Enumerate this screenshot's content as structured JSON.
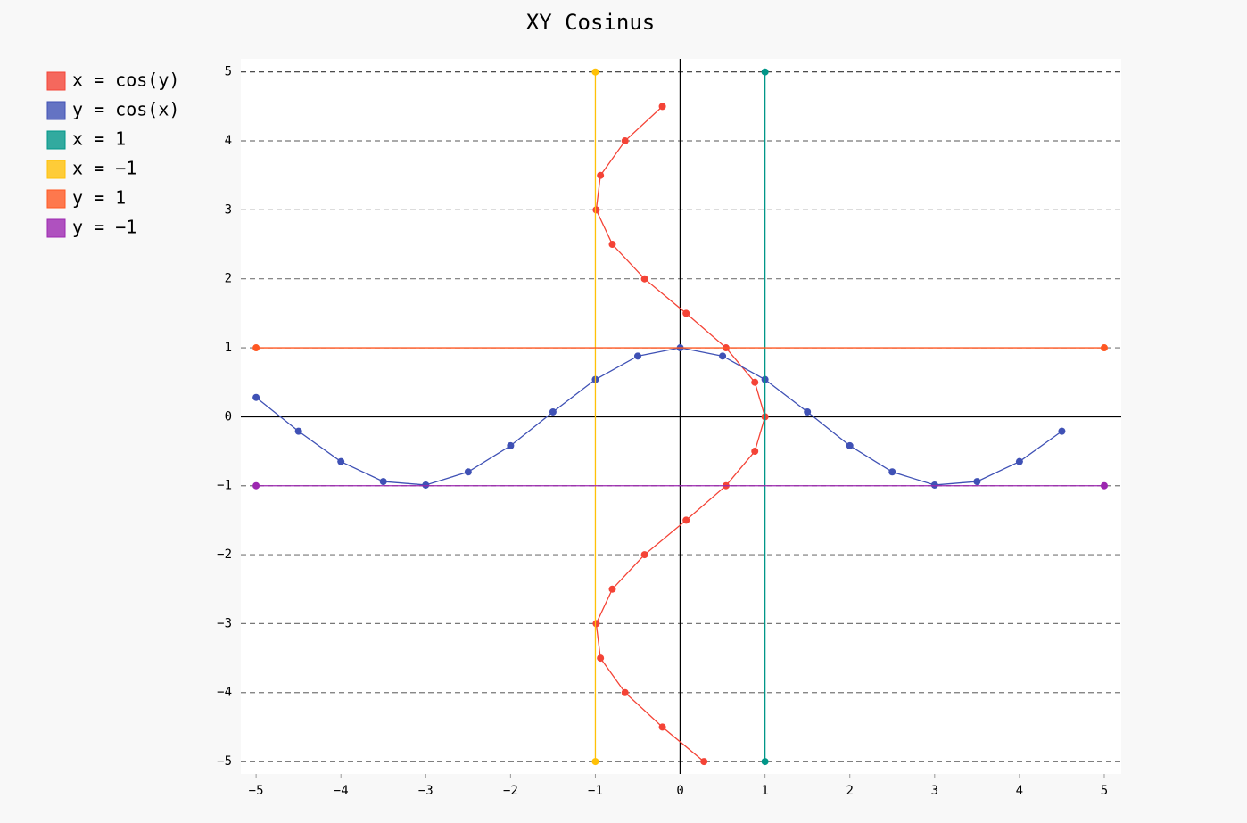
{
  "chart_data": {
    "type": "xy",
    "title": "XY Cosinus",
    "legend": "top-left",
    "grid": true,
    "xlim": [
      -5.18,
      5.2
    ],
    "ylim": [
      -5.18,
      5.19
    ],
    "xticks": [
      {
        "value": -5,
        "label": "−5"
      },
      {
        "value": -4,
        "label": "−4"
      },
      {
        "value": -3,
        "label": "−3"
      },
      {
        "value": -2,
        "label": "−2"
      },
      {
        "value": -1,
        "label": "−1"
      },
      0,
      1,
      2,
      3,
      4,
      5
    ],
    "yticks": [
      {
        "value": -5,
        "label": "−5"
      },
      {
        "value": -4,
        "label": "−4"
      },
      {
        "value": -3,
        "label": "−3"
      },
      {
        "value": -2,
        "label": "−2"
      },
      {
        "value": -1,
        "label": "−1"
      },
      0,
      1,
      2,
      3,
      4,
      5
    ],
    "series": [
      {
        "name": "x = cos(y)",
        "color": "#F44336",
        "x": [
          0.28,
          -0.21,
          -0.65,
          -0.94,
          -0.99,
          -0.8,
          -0.42,
          0.07,
          0.54,
          0.88,
          1,
          0.88,
          0.54,
          0.07,
          -0.42,
          -0.8,
          -0.99,
          -0.94,
          -0.65,
          -0.21
        ],
        "values": [
          -5,
          -4.5,
          -4,
          -3.5,
          -3,
          -2.5,
          -2,
          -1.5,
          -1,
          -0.5,
          0,
          0.5,
          1,
          1.5,
          2,
          2.5,
          3,
          3.5,
          4,
          4.5
        ]
      },
      {
        "name": "y = cos(x)",
        "color": "#3F51B5",
        "x": [
          -5,
          -4.5,
          -4,
          -3.5,
          -3,
          -2.5,
          -2,
          -1.5,
          -1,
          -0.5,
          0,
          0.5,
          1,
          1.5,
          2,
          2.5,
          3,
          3.5,
          4,
          4.5
        ],
        "values": [
          0.28,
          -0.21,
          -0.65,
          -0.94,
          -0.99,
          -0.8,
          -0.42,
          0.07,
          0.54,
          0.88,
          1,
          0.88,
          0.54,
          0.07,
          -0.42,
          -0.8,
          -0.99,
          -0.94,
          -0.65,
          -0.21
        ]
      },
      {
        "name": "x = 1",
        "color": "#009688",
        "x": [
          1,
          1
        ],
        "values": [
          -5,
          5
        ]
      },
      {
        "name": "x = −1",
        "color": "#FFC107",
        "x": [
          -1,
          -1
        ],
        "values": [
          -5,
          5
        ]
      },
      {
        "name": "y = 1",
        "color": "#FF5722",
        "x": [
          -5,
          5
        ],
        "values": [
          1,
          1
        ]
      },
      {
        "name": "y = −1",
        "color": "#9C27B0",
        "x": [
          -5,
          5
        ],
        "values": [
          -1,
          -1
        ]
      }
    ]
  }
}
